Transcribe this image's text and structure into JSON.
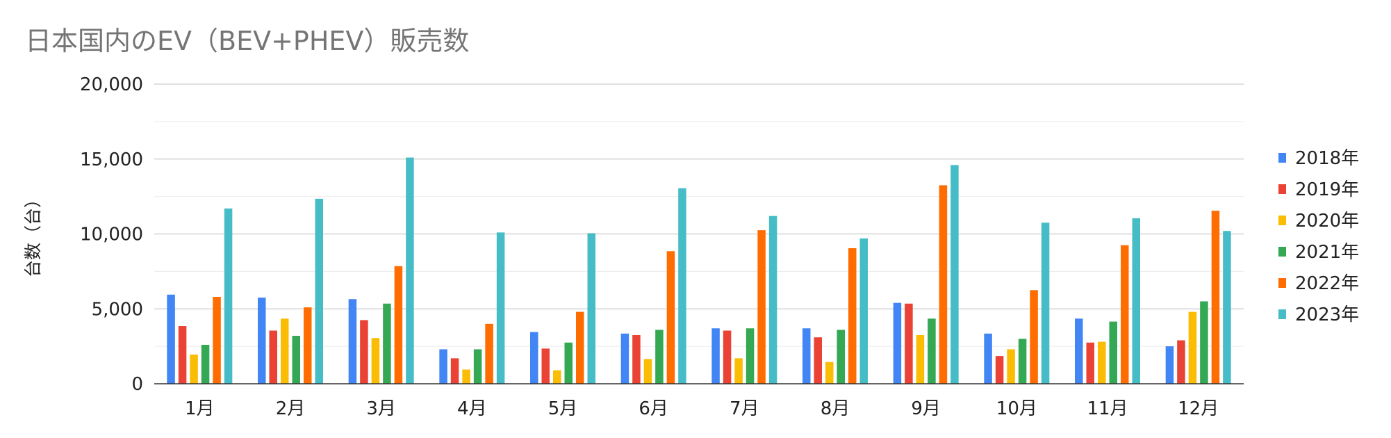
{
  "chart_data": {
    "type": "bar",
    "title": "日本国内のEV（BEV+PHEV）販売数",
    "xlabel": "",
    "ylabel": "台数（台）",
    "ylim": [
      0,
      20000
    ],
    "yticks": [
      0,
      5000,
      10000,
      15000,
      20000
    ],
    "ytick_labels": [
      "0",
      "5,000",
      "10,000",
      "15,000",
      "20,000"
    ],
    "grid": true,
    "minor_grid": true,
    "legend_position": "right",
    "categories": [
      "1月",
      "2月",
      "3月",
      "4月",
      "5月",
      "6月",
      "7月",
      "8月",
      "9月",
      "10月",
      "11月",
      "12月"
    ],
    "series": [
      {
        "name": "2018年",
        "color": "#4285F4",
        "values": [
          5950,
          5750,
          5650,
          2300,
          3450,
          3350,
          3700,
          3700,
          5400,
          3350,
          4350,
          2500
        ]
      },
      {
        "name": "2019年",
        "color": "#EA4335",
        "values": [
          3850,
          3550,
          4250,
          1700,
          2350,
          3250,
          3550,
          3100,
          5350,
          1850,
          2750,
          2900
        ]
      },
      {
        "name": "2020年",
        "color": "#FBBC04",
        "values": [
          1950,
          4350,
          3050,
          950,
          900,
          1650,
          1700,
          1450,
          3250,
          2300,
          2800,
          4800
        ]
      },
      {
        "name": "2021年",
        "color": "#34A853",
        "values": [
          2600,
          3200,
          5350,
          2300,
          2750,
          3600,
          3700,
          3600,
          4350,
          3000,
          4150,
          5500
        ]
      },
      {
        "name": "2022年",
        "color": "#FF6D01",
        "values": [
          5800,
          5100,
          7850,
          4000,
          4800,
          8850,
          10250,
          9050,
          13250,
          6250,
          9250,
          11550
        ]
      },
      {
        "name": "2023年",
        "color": "#46BDC6",
        "values": [
          11700,
          12350,
          15100,
          10100,
          10050,
          13050,
          11200,
          9700,
          14600,
          10750,
          11050,
          10200
        ]
      }
    ]
  }
}
